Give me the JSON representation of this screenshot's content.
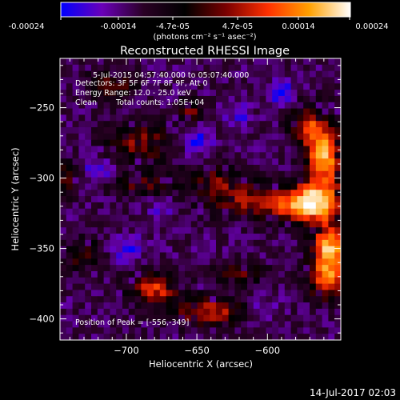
{
  "chart_data": {
    "type": "heatmap",
    "title": "Reconstructed RHESSI Image",
    "xlabel": "Heliocentric X (arcsec)",
    "ylabel": "Heliocentric Y (arcsec)",
    "xlim": [
      -747,
      -548
    ],
    "ylim": [
      -415,
      -215
    ],
    "x_ticks": [
      -700,
      -650,
      -600
    ],
    "y_ticks": [
      -250,
      -300,
      -350,
      -400
    ],
    "x_tick_labels": [
      "−700",
      "−650",
      "−600"
    ],
    "y_tick_labels": [
      "−250",
      "−300",
      "−350",
      "−400"
    ],
    "annotations": {
      "time_range": "5-Jul-2015 04:57:40.000 to 05:07:40.000",
      "detectors": "Detectors: 3F 5F 6F 7F 8F 9F, Att 0",
      "energy_range": "Energy Range: 12.0 - 25.0 keV",
      "algorithm": "Clean",
      "total_counts": "Total counts: 1.05E+04",
      "peak_position": "Position of Peak = [-556,-349]"
    },
    "colorbar": {
      "range": [
        -0.00024,
        0.00024
      ],
      "tick_labels": [
        "-0.00024",
        "-0.00014",
        "-4.7e-05",
        "4.7e-05",
        "0.00014",
        "0.00024"
      ],
      "unit_label": "(photons cm⁻² s⁻¹ asec⁻²)",
      "colormap_stops": [
        "#0000ff",
        "#6a00b8",
        "#2a0025",
        "#000000",
        "#7a0000",
        "#ff3000",
        "#ffa000",
        "#ffffff"
      ]
    },
    "peak": [
      -556,
      -349
    ],
    "hot_regions": [
      {
        "x": -560,
        "y": -285,
        "sx": 9,
        "sy": 16,
        "a": 1.0
      },
      {
        "x": -567,
        "y": -318,
        "sx": 15,
        "sy": 10,
        "a": 0.95
      },
      {
        "x": -556,
        "y": -349,
        "sx": 9,
        "sy": 11,
        "a": 1.0
      },
      {
        "x": -558,
        "y": -372,
        "sx": 9,
        "sy": 10,
        "a": 0.8
      },
      {
        "x": -600,
        "y": -318,
        "sx": 24,
        "sy": 8,
        "a": 0.6
      },
      {
        "x": -636,
        "y": -304,
        "sx": 16,
        "sy": 9,
        "a": 0.5
      },
      {
        "x": -572,
        "y": -262,
        "sx": 9,
        "sy": 10,
        "a": 0.6
      },
      {
        "x": -690,
        "y": -275,
        "sx": 16,
        "sy": 10,
        "a": 0.55
      },
      {
        "x": -690,
        "y": -305,
        "sx": 15,
        "sy": 6,
        "a": 0.45
      },
      {
        "x": -710,
        "y": -234,
        "sx": 12,
        "sy": 7,
        "a": 0.45
      },
      {
        "x": -680,
        "y": -378,
        "sx": 13,
        "sy": 7,
        "a": 0.75
      },
      {
        "x": -640,
        "y": -395,
        "sx": 20,
        "sy": 7,
        "a": 0.65
      },
      {
        "x": -620,
        "y": -368,
        "sx": 14,
        "sy": 6,
        "a": 0.45
      },
      {
        "x": -655,
        "y": -252,
        "sx": 7,
        "sy": 5,
        "a": 0.5
      },
      {
        "x": -730,
        "y": -355,
        "sx": 9,
        "sy": 9,
        "a": 0.4
      },
      {
        "x": -742,
        "y": -300,
        "sx": 6,
        "sy": 9,
        "a": 0.4
      }
    ],
    "cold_regions": [
      {
        "x": -650,
        "y": -274,
        "sx": 7,
        "sy": 7,
        "a": 1.0
      },
      {
        "x": -590,
        "y": -239,
        "sx": 7,
        "sy": 7,
        "a": 0.9
      },
      {
        "x": -700,
        "y": -350,
        "sx": 8,
        "sy": 7,
        "a": 0.8
      },
      {
        "x": -720,
        "y": -295,
        "sx": 9,
        "sy": 7,
        "a": 0.7
      },
      {
        "x": -605,
        "y": -395,
        "sx": 8,
        "sy": 7,
        "a": 0.8
      },
      {
        "x": -675,
        "y": -320,
        "sx": 6,
        "sy": 6,
        "a": 0.7
      },
      {
        "x": -620,
        "y": -256,
        "sx": 7,
        "sy": 6,
        "a": 0.6
      }
    ]
  },
  "footer": {
    "timestamp": "14-Jul-2017 02:03"
  }
}
